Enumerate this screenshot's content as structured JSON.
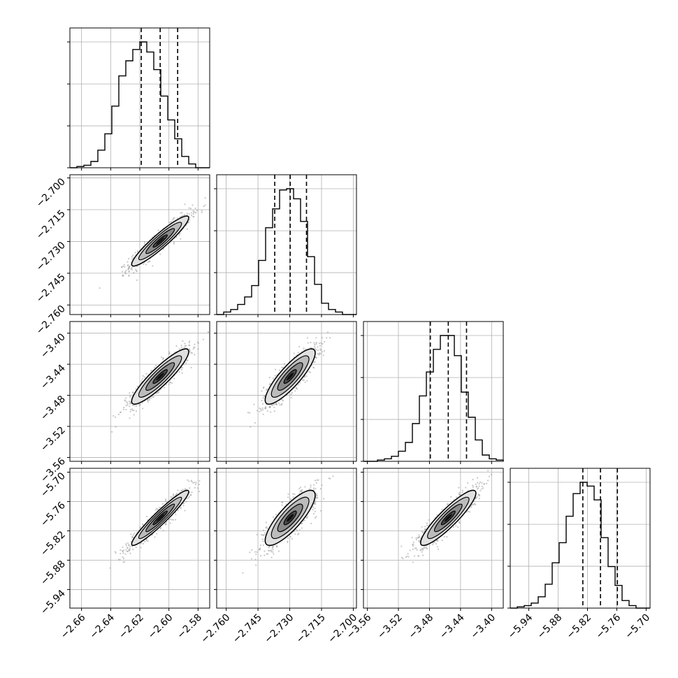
{
  "chart_data": {
    "type": "corner",
    "title": "",
    "params": [
      {
        "name": "",
        "range": [
          -2.668,
          -2.572
        ],
        "ticks": [
          "-2.66",
          "-2.64",
          "-2.62",
          "-2.60",
          "-2.58"
        ],
        "tick_values": [
          -2.66,
          -2.64,
          -2.62,
          -2.6,
          -2.58
        ],
        "quantiles": [
          -2.619,
          -2.606,
          -2.594
        ],
        "hist": [
          0.0,
          0.01,
          0.02,
          0.05,
          0.14,
          0.27,
          0.49,
          0.73,
          0.85,
          0.94,
          1.0,
          0.92,
          0.78,
          0.57,
          0.38,
          0.23,
          0.09,
          0.03,
          0.0,
          0.0
        ]
      },
      {
        "name": "",
        "range": [
          -2.7645,
          -2.6985
        ],
        "ticks": [
          "-2.760",
          "-2.745",
          "-2.730",
          "-2.715",
          "-2.700"
        ],
        "tick_values": [
          -2.76,
          -2.745,
          -2.73,
          -2.715,
          -2.7
        ],
        "quantiles": [
          -2.7371,
          -2.7298,
          -2.7221
        ],
        "hist": [
          0.0,
          0.02,
          0.04,
          0.08,
          0.14,
          0.23,
          0.43,
          0.69,
          0.84,
          0.99,
          1.0,
          0.92,
          0.74,
          0.46,
          0.24,
          0.09,
          0.04,
          0.02,
          0.0,
          0.0
        ]
      },
      {
        "name": "",
        "range": [
          -3.565,
          -3.385
        ],
        "ticks": [
          "-3.56",
          "-3.52",
          "-3.48",
          "-3.44",
          "-3.40"
        ],
        "tick_values": [
          -3.56,
          -3.52,
          -3.48,
          -3.44,
          -3.4
        ],
        "quantiles": [
          -3.4789,
          -3.4558,
          -3.4323
        ],
        "hist": [
          0.0,
          0.0,
          0.01,
          0.02,
          0.04,
          0.08,
          0.15,
          0.3,
          0.52,
          0.71,
          0.89,
          1.0,
          1.0,
          0.84,
          0.55,
          0.35,
          0.17,
          0.05,
          0.02,
          0.01
        ]
      },
      {
        "name": "",
        "range": [
          -5.978,
          -5.692
        ],
        "ticks": [
          "-5.94",
          "-5.88",
          "-5.82",
          "-5.76",
          "-5.70"
        ],
        "tick_values": [
          -5.94,
          -5.88,
          -5.82,
          -5.76,
          -5.7
        ],
        "quantiles": [
          -5.8295,
          -5.7934,
          -5.7588
        ],
        "hist": [
          0.0,
          0.01,
          0.02,
          0.04,
          0.09,
          0.19,
          0.36,
          0.52,
          0.73,
          0.91,
          1.0,
          0.97,
          0.86,
          0.56,
          0.33,
          0.18,
          0.06,
          0.02,
          0.0,
          0.0
        ]
      }
    ],
    "pairs": [
      {
        "x": 0,
        "y": 1,
        "center": [
          -2.606,
          -2.7298
        ],
        "sd": [
          0.0098,
          0.0059
        ],
        "corr": 0.93
      },
      {
        "x": 0,
        "y": 2,
        "center": [
          -2.606,
          -3.4558
        ],
        "sd": [
          0.0098,
          0.0178
        ],
        "corr": 0.9
      },
      {
        "x": 1,
        "y": 2,
        "center": [
          -2.7298,
          -3.4558
        ],
        "sd": [
          0.0059,
          0.0178
        ],
        "corr": 0.85
      },
      {
        "x": 0,
        "y": 3,
        "center": [
          -2.606,
          -5.7934
        ],
        "sd": [
          0.0098,
          0.0282
        ],
        "corr": 0.95
      },
      {
        "x": 1,
        "y": 3,
        "center": [
          -2.7298,
          -5.7934
        ],
        "sd": [
          0.0059,
          0.0282
        ],
        "corr": 0.82
      },
      {
        "x": 2,
        "y": 3,
        "center": [
          -3.4558,
          -5.7934
        ],
        "sd": [
          0.0178,
          0.0282
        ],
        "corr": 0.9
      }
    ],
    "contour_levels_sigma": [
      0.5,
      1.0,
      1.5,
      2.0
    ],
    "grid": true,
    "quantile_lines": "dashed"
  }
}
